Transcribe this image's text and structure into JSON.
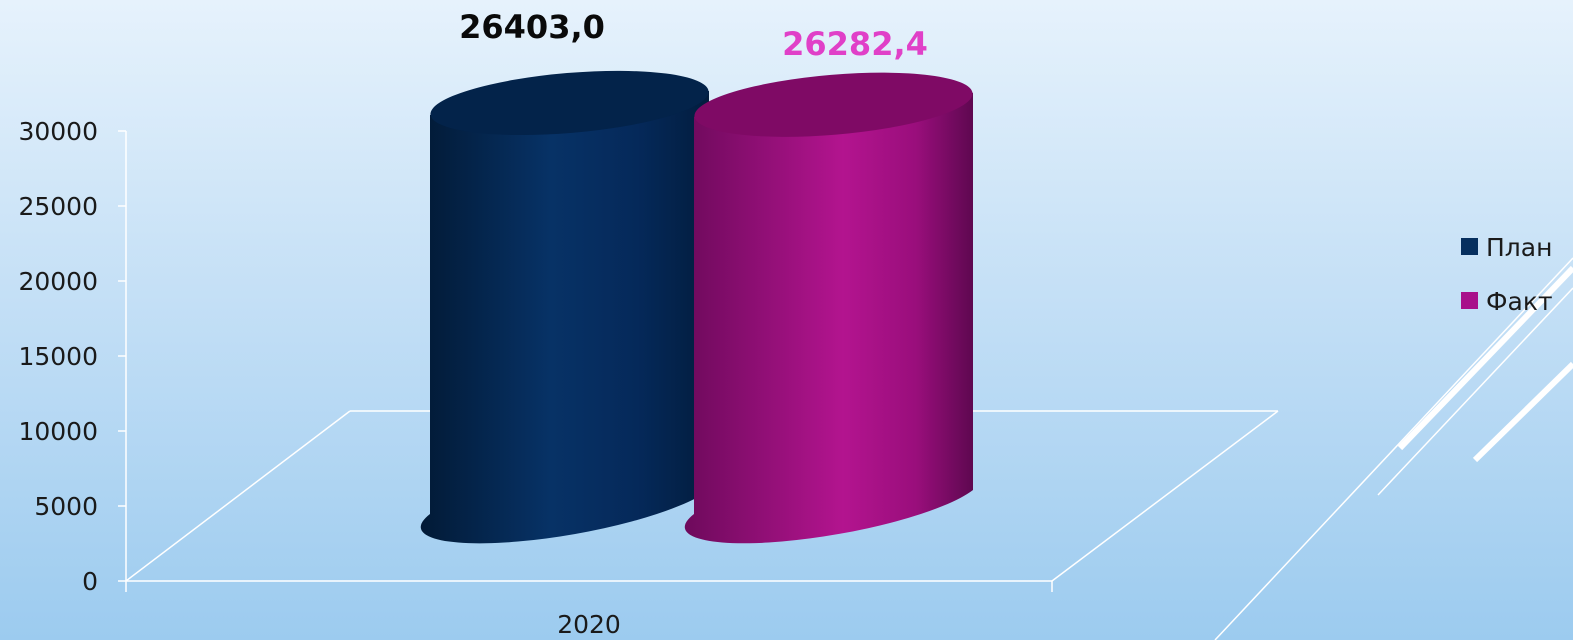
{
  "chart_data": {
    "type": "bar",
    "style": "3d-cylinder",
    "categories": [
      "2020"
    ],
    "series": [
      {
        "name": "План",
        "values": [
          26403.0
        ],
        "label": "26403,0",
        "color": "#062f5e",
        "label_color": "#0a0a0a"
      },
      {
        "name": "Факт",
        "values": [
          26282.4
        ],
        "label": "26282,4",
        "color": "#a8108a",
        "label_color": "#e040c8"
      }
    ],
    "ylim": [
      0,
      30000
    ],
    "yticks": [
      0,
      5000,
      10000,
      15000,
      20000,
      25000,
      30000
    ],
    "ytick_labels": [
      "0",
      "5000",
      "10000",
      "15000",
      "20000",
      "25000",
      "30000"
    ],
    "legend_position": "right"
  }
}
